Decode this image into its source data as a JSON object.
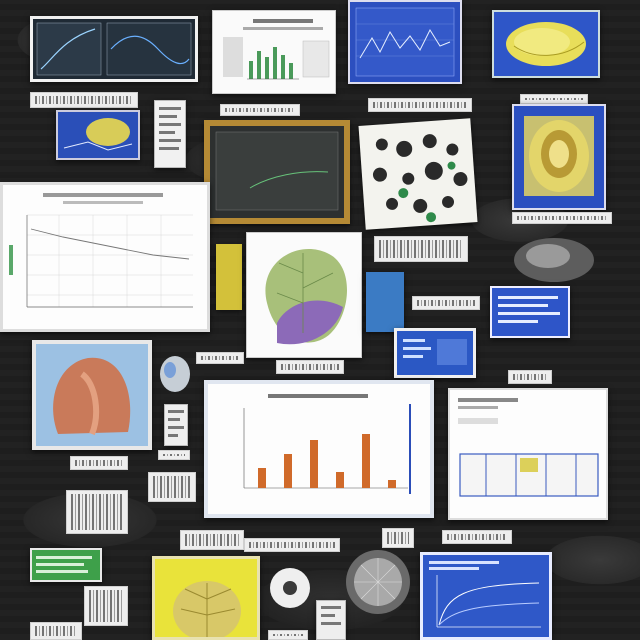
{
  "scene": {
    "colors": {
      "background": "#1b1b1b",
      "blue_panel": "#2b4db8",
      "yellow_panel": "#d8c94a",
      "orange_bar": "#d06a2a",
      "green_line": "#5aa06a"
    },
    "cards": [
      {
        "name": "dark-line-chart",
        "icon": "line-chart"
      },
      {
        "name": "bar-chart-sheet",
        "icon": "bar-chart"
      },
      {
        "name": "blue-wave-chart",
        "icon": "line-chart"
      },
      {
        "name": "yellow-specimen-panel",
        "icon": "specimen"
      },
      {
        "name": "blue-specimen-panel",
        "icon": "specimen"
      },
      {
        "name": "dark-monitor-panel",
        "icon": "monitor"
      },
      {
        "name": "dots-sheet",
        "icon": "dots"
      },
      {
        "name": "yellow-organ-panel",
        "icon": "specimen"
      },
      {
        "name": "grid-chart-sheet",
        "icon": "grid-chart"
      },
      {
        "name": "cabbage-illustration",
        "icon": "illustration"
      },
      {
        "name": "blue-text-card",
        "icon": "text"
      },
      {
        "name": "tissue-photo",
        "icon": "photo"
      },
      {
        "name": "orange-bar-chart",
        "icon": "bar-chart"
      },
      {
        "name": "table-chart-sheet",
        "icon": "table"
      },
      {
        "name": "yellow-brain-panel",
        "icon": "specimen"
      },
      {
        "name": "gray-sphere",
        "icon": "sphere"
      },
      {
        "name": "white-ring",
        "icon": "ring"
      },
      {
        "name": "blue-curve-chart",
        "icon": "line-chart"
      }
    ]
  }
}
